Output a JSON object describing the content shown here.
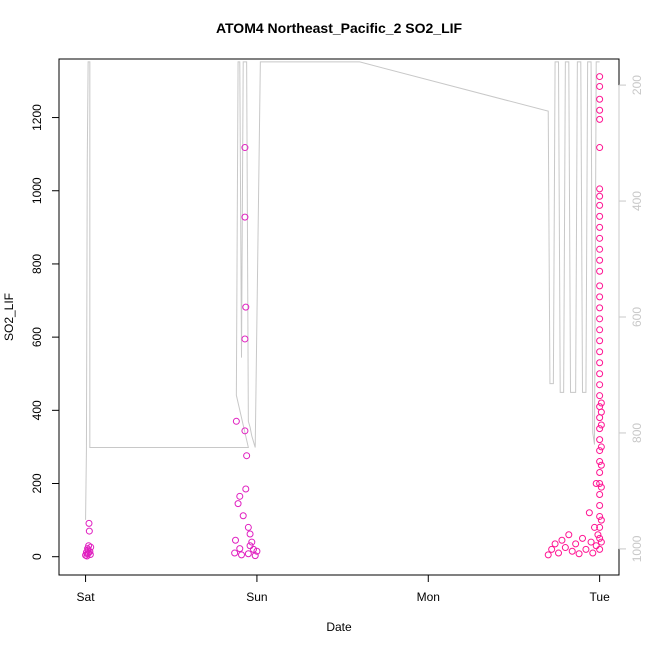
{
  "chart_data": {
    "type": "scatter",
    "title": "ATOM4 Northeast_Pacific_2 SO2_LIF",
    "xlabel": "Date",
    "ylabel": "SO2_LIF",
    "x_ticks": [
      {
        "label": "Sat",
        "day": 0
      },
      {
        "label": "Sun",
        "day": 1
      },
      {
        "label": "Mon",
        "day": 2
      },
      {
        "label": "Tue",
        "day": 3
      }
    ],
    "y_ticks": [
      0,
      200,
      400,
      600,
      800,
      1000,
      1200
    ],
    "y_right_ticks": [
      200,
      400,
      600,
      800,
      1000
    ],
    "xlim_days": [
      -0.155,
      3.113
    ],
    "ylim": [
      -50,
      1360
    ],
    "y_right_lim": [
      1045,
      155
    ],
    "grid": false,
    "colors": {
      "points": "#ff1493",
      "points_alt": "#e020c0",
      "secondary_line": "#c8c8c8",
      "axis": "#000000",
      "right_axis": "#c8c8c8"
    },
    "series": [
      {
        "points": [
          [
            0.0,
            4
          ],
          [
            0.005,
            12
          ],
          [
            0.01,
            8
          ],
          [
            0.012,
            22
          ],
          [
            0.015,
            18
          ],
          [
            0.018,
            30
          ],
          [
            0.02,
            91
          ],
          [
            0.022,
            70
          ],
          [
            0.025,
            14
          ],
          [
            0.028,
            6
          ],
          [
            0.03,
            26
          ],
          [
            0.008,
            2
          ],
          [
            0.017,
            10
          ],
          [
            0.88,
            370
          ],
          [
            0.87,
            10
          ],
          [
            0.875,
            45
          ],
          [
            0.89,
            145
          ],
          [
            0.9,
            22
          ],
          [
            0.9,
            165
          ],
          [
            0.92,
            112
          ],
          [
            0.93,
            1118
          ],
          [
            0.93,
            928
          ],
          [
            0.935,
            682
          ],
          [
            0.93,
            595
          ],
          [
            0.93,
            344
          ],
          [
            0.94,
            276
          ],
          [
            0.935,
            185
          ],
          [
            0.95,
            80
          ],
          [
            0.96,
            62
          ],
          [
            0.97,
            40
          ],
          [
            0.98,
            20
          ],
          [
            1.0,
            15
          ],
          [
            0.91,
            5
          ],
          [
            0.95,
            8
          ],
          [
            0.99,
            3
          ],
          [
            0.96,
            30
          ],
          [
            2.7,
            5
          ],
          [
            2.72,
            20
          ],
          [
            2.74,
            35
          ],
          [
            2.76,
            10
          ],
          [
            2.78,
            45
          ],
          [
            2.8,
            25
          ],
          [
            2.82,
            60
          ],
          [
            2.84,
            15
          ],
          [
            2.86,
            35
          ],
          [
            2.88,
            8
          ],
          [
            2.9,
            50
          ],
          [
            2.92,
            20
          ],
          [
            2.94,
            120
          ],
          [
            2.95,
            40
          ],
          [
            2.96,
            10
          ],
          [
            2.97,
            80
          ],
          [
            2.98,
            30
          ],
          [
            2.98,
            200
          ],
          [
            2.99,
            60
          ],
          [
            3.0,
            1312
          ],
          [
            3.0,
            1285
          ],
          [
            3.0,
            1250
          ],
          [
            3.0,
            1220
          ],
          [
            3.0,
            1195
          ],
          [
            3.0,
            1118
          ],
          [
            3.0,
            1005
          ],
          [
            3.0,
            985
          ],
          [
            3.0,
            960
          ],
          [
            3.0,
            930
          ],
          [
            3.0,
            900
          ],
          [
            3.0,
            870
          ],
          [
            3.0,
            840
          ],
          [
            3.0,
            810
          ],
          [
            3.0,
            780
          ],
          [
            3.0,
            740
          ],
          [
            3.0,
            710
          ],
          [
            3.0,
            680
          ],
          [
            3.0,
            650
          ],
          [
            3.0,
            620
          ],
          [
            3.0,
            590
          ],
          [
            3.0,
            560
          ],
          [
            3.0,
            530
          ],
          [
            3.0,
            500
          ],
          [
            3.0,
            470
          ],
          [
            3.0,
            440
          ],
          [
            3.0,
            410
          ],
          [
            3.0,
            380
          ],
          [
            3.0,
            350
          ],
          [
            3.0,
            320
          ],
          [
            3.0,
            290
          ],
          [
            3.0,
            260
          ],
          [
            3.0,
            230
          ],
          [
            3.0,
            200
          ],
          [
            3.0,
            170
          ],
          [
            3.0,
            140
          ],
          [
            3.0,
            110
          ],
          [
            3.0,
            80
          ],
          [
            3.0,
            50
          ],
          [
            3.0,
            20
          ],
          [
            3.01,
            420
          ],
          [
            3.01,
            395
          ],
          [
            3.01,
            360
          ],
          [
            3.01,
            300
          ],
          [
            3.01,
            250
          ],
          [
            3.01,
            190
          ],
          [
            3.01,
            100
          ],
          [
            3.01,
            40
          ]
        ]
      },
      {
        "axis": "right",
        "points": [
          [
            0.0,
            950
          ],
          [
            0.005,
            830
          ],
          [
            0.01,
            330
          ],
          [
            0.015,
            160
          ],
          [
            0.02,
            160
          ],
          [
            0.025,
            160
          ],
          [
            0.025,
            825
          ],
          [
            0.95,
            825
          ],
          [
            0.88,
            735
          ],
          [
            0.89,
            160
          ],
          [
            0.9,
            160
          ],
          [
            0.91,
            670
          ],
          [
            0.92,
            160
          ],
          [
            0.94,
            160
          ],
          [
            0.95,
            780
          ],
          [
            0.96,
            790
          ],
          [
            0.97,
            805
          ],
          [
            0.99,
            825
          ],
          [
            1.02,
            160
          ],
          [
            1.6,
            160
          ],
          [
            2.7,
            245
          ],
          [
            2.71,
            715
          ],
          [
            2.73,
            715
          ],
          [
            2.74,
            160
          ],
          [
            2.76,
            160
          ],
          [
            2.77,
            730
          ],
          [
            2.79,
            730
          ],
          [
            2.8,
            160
          ],
          [
            2.82,
            160
          ],
          [
            2.83,
            730
          ],
          [
            2.86,
            730
          ],
          [
            2.87,
            160
          ],
          [
            2.89,
            160
          ],
          [
            2.9,
            730
          ],
          [
            2.92,
            730
          ],
          [
            2.93,
            160
          ],
          [
            2.95,
            160
          ],
          [
            2.96,
            800
          ],
          [
            2.97,
            820
          ],
          [
            2.98,
            160
          ],
          [
            3.0,
            160
          ]
        ]
      }
    ]
  }
}
